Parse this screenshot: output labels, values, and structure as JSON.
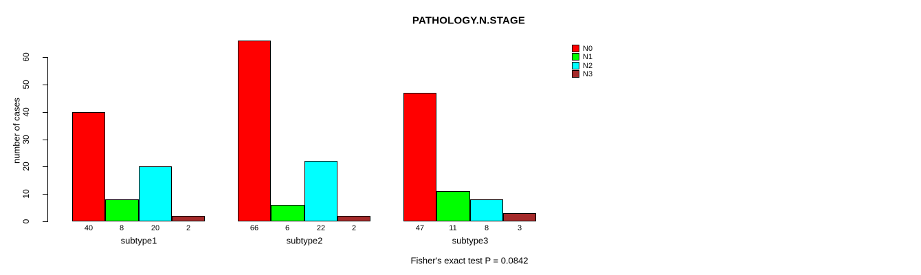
{
  "title": "PATHOLOGY.N.STAGE",
  "ylabel": "number of cases",
  "footer": "Fisher's exact test P = 0.0842",
  "legend": {
    "entries": [
      {
        "label": "N0",
        "color": "#FF0000"
      },
      {
        "label": "N1",
        "color": "#00FF00"
      },
      {
        "label": "N2",
        "color": "#00FFFF"
      },
      {
        "label": "N3",
        "color": "#A52A2A"
      }
    ]
  },
  "chart_data": {
    "type": "bar",
    "title": "PATHOLOGY.N.STAGE",
    "xlabel": "",
    "ylabel": "number of cases",
    "categories": [
      "subtype1",
      "subtype2",
      "subtype3"
    ],
    "series": [
      {
        "name": "N0",
        "color": "#FF0000",
        "values": [
          40,
          66,
          47
        ]
      },
      {
        "name": "N1",
        "color": "#00FF00",
        "values": [
          8,
          6,
          11
        ]
      },
      {
        "name": "N2",
        "color": "#00FFFF",
        "values": [
          20,
          22,
          8
        ]
      },
      {
        "name": "N3",
        "color": "#A52A2A",
        "values": [
          2,
          2,
          3
        ]
      }
    ],
    "yticks": [
      0,
      10,
      20,
      30,
      40,
      50,
      60
    ],
    "ylim": [
      0,
      66
    ],
    "axis_max_labeled": 60,
    "grid": false,
    "bar_value_labels": true,
    "legend_position": "top-right",
    "annotation": "Fisher's exact test P = 0.0842"
  }
}
